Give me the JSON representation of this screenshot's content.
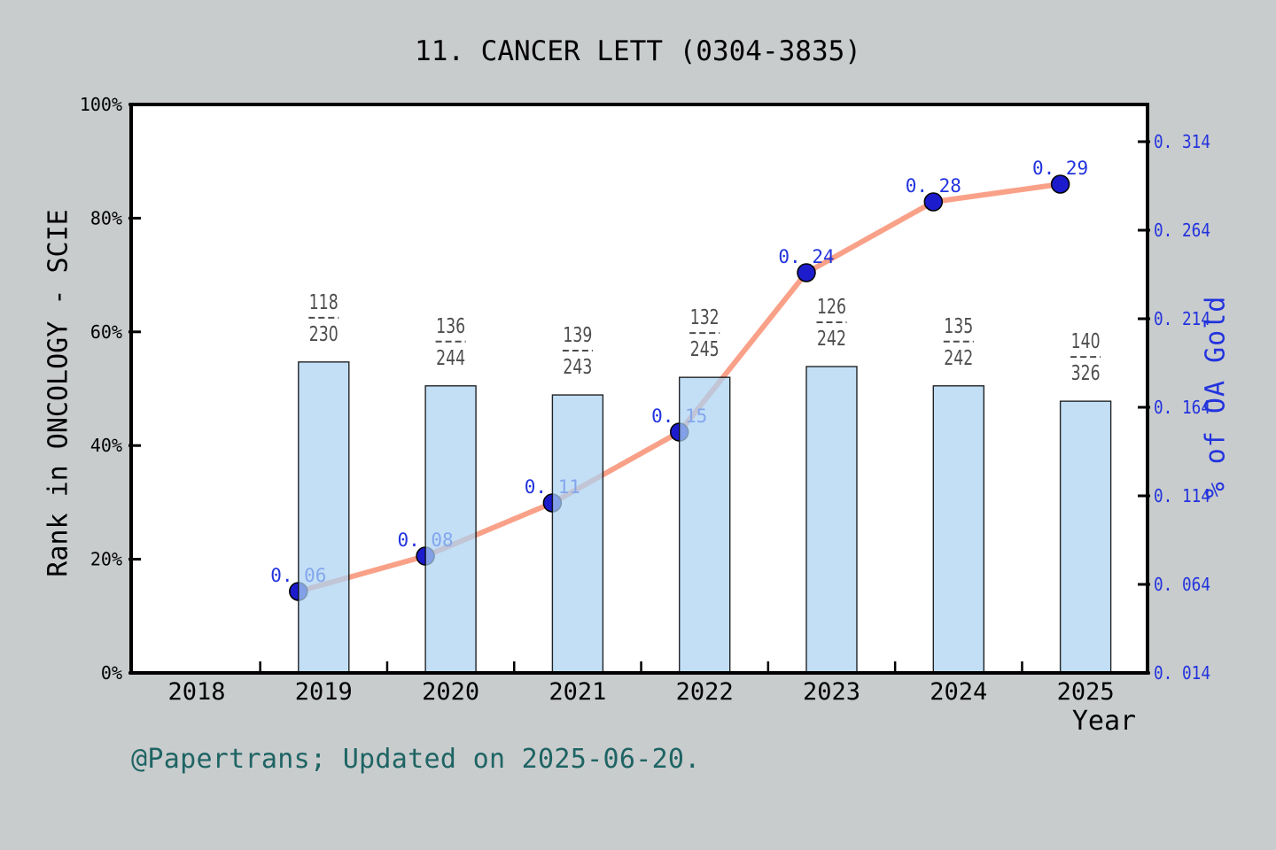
{
  "chart_data": {
    "type": "combo-bar-line-dual-axis",
    "title": "11. CANCER LETT (0304-3835)",
    "xlabel": "Year",
    "categories": [
      "2018",
      "2019",
      "2020",
      "2021",
      "2022",
      "2023",
      "2024",
      "2025"
    ],
    "bar_series": {
      "name": "Rank in ONCOLOGY - SCIE",
      "axis": "left",
      "unit": "%",
      "values_percent": [
        null,
        54.7,
        50.5,
        48.9,
        52.0,
        53.9,
        50.5,
        47.8
      ],
      "fraction_labels": [
        null,
        [
          "118",
          "230"
        ],
        [
          "136",
          "244"
        ],
        [
          "139",
          "243"
        ],
        [
          "132",
          "245"
        ],
        [
          "126",
          "242"
        ],
        [
          "135",
          "242"
        ],
        [
          "140",
          "326"
        ]
      ]
    },
    "line_series": {
      "name": "% of OA Gold",
      "axis": "right",
      "values": [
        null,
        0.06,
        0.08,
        0.11,
        0.15,
        0.24,
        0.28,
        0.29
      ],
      "point_labels": [
        null,
        "0. 06",
        "0. 08",
        "0. 11",
        "0. 15",
        "0. 24",
        "0. 28",
        "0. 29"
      ]
    },
    "left_axis": {
      "label": "Rank in ONCOLOGY - SCIE",
      "range_percent": [
        0,
        100
      ],
      "tick_values_percent": [
        0,
        20,
        40,
        60,
        80,
        100
      ],
      "tick_labels": [
        "0%",
        "20%",
        "40%",
        "60%",
        "80%",
        "100%"
      ]
    },
    "right_axis": {
      "label": "% of OA Gold",
      "range": [
        0.014,
        0.335
      ],
      "tick_values": [
        0.014,
        0.064,
        0.114,
        0.164,
        0.214,
        0.264,
        0.314
      ],
      "tick_labels": [
        "0. 014",
        "0. 064",
        "0. 114",
        "0. 164",
        "0. 214",
        "0. 264",
        "0. 314"
      ]
    },
    "grid": false,
    "legend": "none",
    "colors": {
      "background": "#c9cccd",
      "plot_background": "#ffffff",
      "frame": "#000000",
      "bar_fill": "#abd2f3",
      "bar_edge": "#000000",
      "line": "#f9a188",
      "marker": "#1c1ccc",
      "blue_text": "#2233dd",
      "fraction_text": "#4d4d4d",
      "year_text": "#000000"
    }
  },
  "annotation": {
    "text": "@Papertrans; Updated on 2025-06-20.",
    "color": "#1e6464"
  }
}
